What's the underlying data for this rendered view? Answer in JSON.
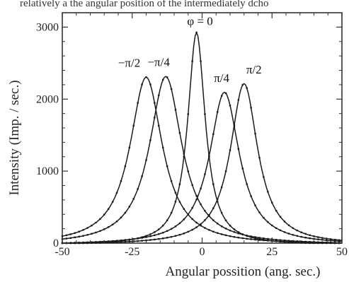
{
  "top_fragment": "relatively a the angular position of the intermediately dcho",
  "chart_data": {
    "type": "line",
    "xlabel": "Angular possition  (ang. sec.)",
    "ylabel": "Intensity (Imp. / sec.)",
    "xlim": [
      -50,
      50
    ],
    "ylim": [
      0,
      3200
    ],
    "x_ticks": [
      -50,
      -25,
      0,
      25,
      50
    ],
    "y_ticks": [
      0,
      1000,
      2000,
      3000
    ],
    "grid": false,
    "series": [
      {
        "name": "−π/2",
        "peak_x": -20,
        "peak_y": 2330,
        "hwhm_left": 6.5,
        "hwhm_right": 6.5,
        "points": [
          [
            -50,
            20
          ],
          [
            -45,
            60
          ],
          [
            -40,
            180
          ],
          [
            -35,
            420
          ],
          [
            -30,
            900
          ],
          [
            -25,
            1650
          ],
          [
            -22,
            2150
          ],
          [
            -20,
            2330
          ],
          [
            -18,
            2180
          ],
          [
            -15,
            1680
          ],
          [
            -10,
            1000
          ],
          [
            -5,
            560
          ],
          [
            0,
            330
          ],
          [
            5,
            200
          ],
          [
            10,
            120
          ],
          [
            15,
            70
          ],
          [
            20,
            40
          ],
          [
            30,
            15
          ],
          [
            40,
            5
          ],
          [
            50,
            0
          ]
        ]
      },
      {
        "name": "−π/4",
        "peak_x": -13,
        "peak_y": 2340,
        "hwhm_left": 6.5,
        "hwhm_right": 6.5,
        "points": [
          [
            -50,
            10
          ],
          [
            -45,
            20
          ],
          [
            -40,
            50
          ],
          [
            -35,
            130
          ],
          [
            -30,
            300
          ],
          [
            -25,
            650
          ],
          [
            -20,
            1300
          ],
          [
            -16,
            1950
          ],
          [
            -13,
            2340
          ],
          [
            -10,
            2100
          ],
          [
            -7,
            1650
          ],
          [
            -3,
            1050
          ],
          [
            0,
            750
          ],
          [
            5,
            420
          ],
          [
            10,
            230
          ],
          [
            15,
            130
          ],
          [
            20,
            70
          ],
          [
            30,
            25
          ],
          [
            40,
            10
          ],
          [
            50,
            0
          ]
        ]
      },
      {
        "name": "φ = 0",
        "peak_x": -2,
        "peak_y": 2950,
        "hwhm_left": 3.5,
        "hwhm_right": 3.5,
        "points": [
          [
            -50,
            5
          ],
          [
            -40,
            20
          ],
          [
            -30,
            60
          ],
          [
            -25,
            110
          ],
          [
            -20,
            210
          ],
          [
            -15,
            420
          ],
          [
            -10,
            850
          ],
          [
            -7,
            1500
          ],
          [
            -4,
            2450
          ],
          [
            -2,
            2950
          ],
          [
            0,
            2600
          ],
          [
            3,
            1650
          ],
          [
            6,
            900
          ],
          [
            10,
            450
          ],
          [
            15,
            200
          ],
          [
            20,
            100
          ],
          [
            25,
            50
          ],
          [
            35,
            15
          ],
          [
            50,
            0
          ]
        ]
      },
      {
        "name": "π/4",
        "peak_x": 8,
        "peak_y": 2120,
        "hwhm_left": 6.0,
        "hwhm_right": 6.0,
        "points": [
          [
            -50,
            0
          ],
          [
            -40,
            10
          ],
          [
            -30,
            30
          ],
          [
            -20,
            100
          ],
          [
            -15,
            200
          ],
          [
            -10,
            380
          ],
          [
            -5,
            700
          ],
          [
            0,
            1200
          ],
          [
            4,
            1800
          ],
          [
            8,
            2120
          ],
          [
            12,
            1850
          ],
          [
            16,
            1250
          ],
          [
            20,
            700
          ],
          [
            25,
            330
          ],
          [
            30,
            150
          ],
          [
            35,
            60
          ],
          [
            40,
            25
          ],
          [
            50,
            5
          ]
        ]
      },
      {
        "name": "π/2",
        "peak_x": 15,
        "peak_y": 2240,
        "hwhm_left": 5.5,
        "hwhm_right": 5.5,
        "points": [
          [
            -50,
            0
          ],
          [
            -40,
            5
          ],
          [
            -30,
            20
          ],
          [
            -20,
            60
          ],
          [
            -10,
            180
          ],
          [
            -5,
            320
          ],
          [
            0,
            560
          ],
          [
            5,
            1000
          ],
          [
            9,
            1650
          ],
          [
            13,
            2150
          ],
          [
            15,
            2240
          ],
          [
            18,
            2050
          ],
          [
            22,
            1450
          ],
          [
            26,
            800
          ],
          [
            30,
            380
          ],
          [
            35,
            150
          ],
          [
            40,
            60
          ],
          [
            50,
            10
          ]
        ]
      }
    ]
  }
}
